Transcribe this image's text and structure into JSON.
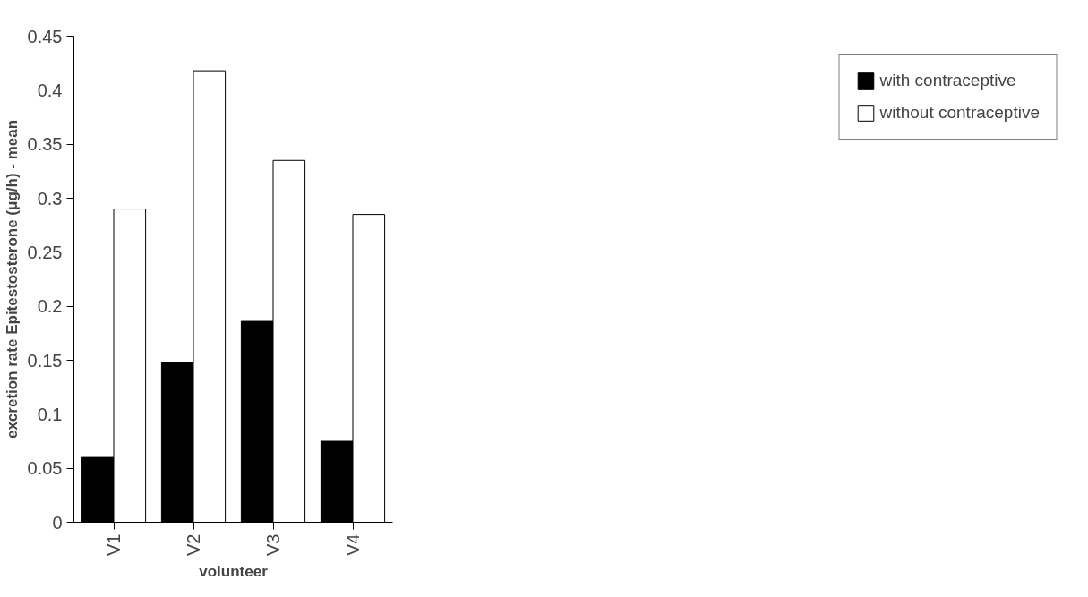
{
  "chart_data": {
    "type": "bar",
    "xlabel": "volunteer",
    "ylabel": "excretion rate Epitestosterone (μg/h) - mean",
    "categories": [
      "V1",
      "V2",
      "V3",
      "V4"
    ],
    "series": [
      {
        "name": "with contraceptive",
        "color": "#000000",
        "values": [
          0.06,
          0.148,
          0.186,
          0.075
        ]
      },
      {
        "name": "without contraceptive",
        "color": "#ffffff",
        "values": [
          0.29,
          0.418,
          0.335,
          0.285
        ]
      }
    ],
    "ylim": [
      0,
      0.45
    ],
    "yticks": [
      0,
      0.05,
      0.1,
      0.15,
      0.2,
      0.25,
      0.3,
      0.35,
      0.4,
      0.45
    ],
    "grid": false,
    "legend": "right"
  }
}
